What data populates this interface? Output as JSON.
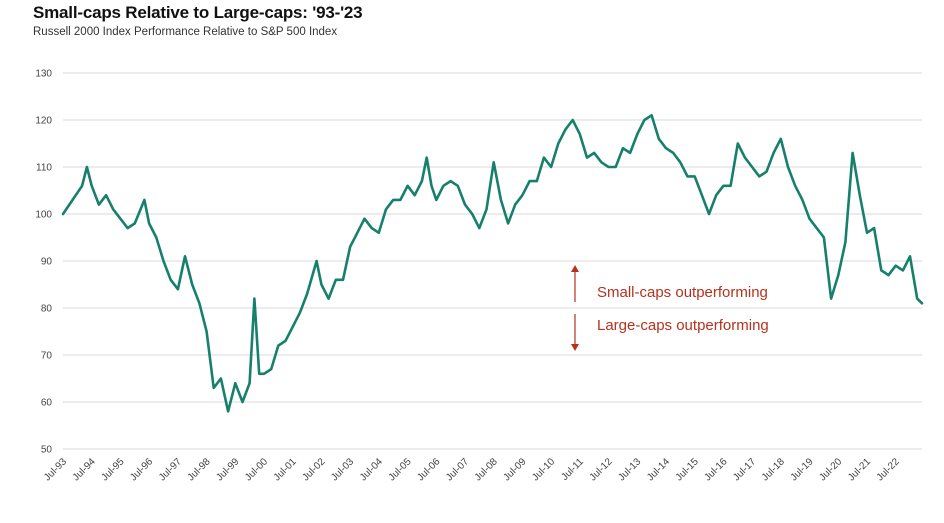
{
  "chart_data": {
    "type": "line",
    "title": "Small-caps Relative to Large-caps: '93-'23",
    "subtitle": "Russell 2000 Index Performance Relative to S&P 500 Index",
    "xlabel": "",
    "ylabel": "",
    "ylim": [
      50,
      130
    ],
    "yticks": [
      50,
      60,
      70,
      80,
      90,
      100,
      110,
      120,
      130
    ],
    "xticks": [
      "Jul-93",
      "Jul-94",
      "Jul-95",
      "Jul-96",
      "Jul-97",
      "Jul-98",
      "Jul-99",
      "Jul-00",
      "Jul-01",
      "Jul-02",
      "Jul-03",
      "Jul-04",
      "Jul-05",
      "Jul-06",
      "Jul-07",
      "Jul-08",
      "Jul-09",
      "Jul-10",
      "Jul-11",
      "Jul-12",
      "Jul-13",
      "Jul-14",
      "Jul-15",
      "Jul-16",
      "Jul-17",
      "Jul-18",
      "Jul-19",
      "Jul-20",
      "Jul-21",
      "Jul-22"
    ],
    "grid": true,
    "line_color": "#17806d",
    "annotation_color": "#b5321e",
    "annotations": {
      "up": "Small-caps outperforming",
      "down": "Large-caps outperforming"
    },
    "series": [
      {
        "values": [
          {
            "x": "Jul-93",
            "y": 100
          },
          {
            "x": "Nov-93",
            "y": 103
          },
          {
            "x": "Mar-94",
            "y": 106
          },
          {
            "x": "May-94",
            "y": 110
          },
          {
            "x": "Jul-94",
            "y": 106
          },
          {
            "x": "Oct-94",
            "y": 102
          },
          {
            "x": "Jan-95",
            "y": 104
          },
          {
            "x": "Apr-95",
            "y": 101
          },
          {
            "x": "Jul-95",
            "y": 99
          },
          {
            "x": "Oct-95",
            "y": 97
          },
          {
            "x": "Jan-96",
            "y": 98
          },
          {
            "x": "May-96",
            "y": 103
          },
          {
            "x": "Jul-96",
            "y": 98
          },
          {
            "x": "Oct-96",
            "y": 95
          },
          {
            "x": "Jan-97",
            "y": 90
          },
          {
            "x": "Apr-97",
            "y": 86
          },
          {
            "x": "Jul-97",
            "y": 84
          },
          {
            "x": "Oct-97",
            "y": 91
          },
          {
            "x": "Jan-98",
            "y": 85
          },
          {
            "x": "Apr-98",
            "y": 81
          },
          {
            "x": "Jul-98",
            "y": 75
          },
          {
            "x": "Oct-98",
            "y": 63
          },
          {
            "x": "Jan-99",
            "y": 65
          },
          {
            "x": "Apr-99",
            "y": 58
          },
          {
            "x": "Jul-99",
            "y": 64
          },
          {
            "x": "Oct-99",
            "y": 60
          },
          {
            "x": "Jan-00",
            "y": 64
          },
          {
            "x": "Mar-00",
            "y": 82
          },
          {
            "x": "May-00",
            "y": 66
          },
          {
            "x": "Jul-00",
            "y": 66
          },
          {
            "x": "Oct-00",
            "y": 67
          },
          {
            "x": "Jan-01",
            "y": 72
          },
          {
            "x": "Apr-01",
            "y": 73
          },
          {
            "x": "Jul-01",
            "y": 76
          },
          {
            "x": "Oct-01",
            "y": 79
          },
          {
            "x": "Jan-02",
            "y": 83
          },
          {
            "x": "May-02",
            "y": 90
          },
          {
            "x": "Jul-02",
            "y": 85
          },
          {
            "x": "Oct-02",
            "y": 82
          },
          {
            "x": "Jan-03",
            "y": 86
          },
          {
            "x": "Apr-03",
            "y": 86
          },
          {
            "x": "Jul-03",
            "y": 93
          },
          {
            "x": "Oct-03",
            "y": 96
          },
          {
            "x": "Jan-04",
            "y": 99
          },
          {
            "x": "Apr-04",
            "y": 97
          },
          {
            "x": "Jul-04",
            "y": 96
          },
          {
            "x": "Oct-04",
            "y": 101
          },
          {
            "x": "Jan-05",
            "y": 103
          },
          {
            "x": "Apr-05",
            "y": 103
          },
          {
            "x": "Jul-05",
            "y": 106
          },
          {
            "x": "Oct-05",
            "y": 104
          },
          {
            "x": "Jan-06",
            "y": 107
          },
          {
            "x": "Mar-06",
            "y": 112
          },
          {
            "x": "May-06",
            "y": 106
          },
          {
            "x": "Jul-06",
            "y": 103
          },
          {
            "x": "Oct-06",
            "y": 106
          },
          {
            "x": "Jan-07",
            "y": 107
          },
          {
            "x": "Apr-07",
            "y": 106
          },
          {
            "x": "Jul-07",
            "y": 102
          },
          {
            "x": "Oct-07",
            "y": 100
          },
          {
            "x": "Jan-08",
            "y": 97
          },
          {
            "x": "Apr-08",
            "y": 101
          },
          {
            "x": "Jul-08",
            "y": 111
          },
          {
            "x": "Oct-08",
            "y": 103
          },
          {
            "x": "Jan-09",
            "y": 98
          },
          {
            "x": "Apr-09",
            "y": 102
          },
          {
            "x": "Jul-09",
            "y": 104
          },
          {
            "x": "Oct-09",
            "y": 107
          },
          {
            "x": "Jan-10",
            "y": 107
          },
          {
            "x": "Apr-10",
            "y": 112
          },
          {
            "x": "Jul-10",
            "y": 110
          },
          {
            "x": "Oct-10",
            "y": 115
          },
          {
            "x": "Jan-11",
            "y": 118
          },
          {
            "x": "Apr-11",
            "y": 120
          },
          {
            "x": "Jul-11",
            "y": 117
          },
          {
            "x": "Oct-11",
            "y": 112
          },
          {
            "x": "Jan-12",
            "y": 113
          },
          {
            "x": "Apr-12",
            "y": 111
          },
          {
            "x": "Jul-12",
            "y": 110
          },
          {
            "x": "Oct-12",
            "y": 110
          },
          {
            "x": "Jan-13",
            "y": 114
          },
          {
            "x": "Apr-13",
            "y": 113
          },
          {
            "x": "Jul-13",
            "y": 117
          },
          {
            "x": "Oct-13",
            "y": 120
          },
          {
            "x": "Jan-14",
            "y": 121
          },
          {
            "x": "Apr-14",
            "y": 116
          },
          {
            "x": "Jul-14",
            "y": 114
          },
          {
            "x": "Oct-14",
            "y": 113
          },
          {
            "x": "Jan-15",
            "y": 111
          },
          {
            "x": "Apr-15",
            "y": 108
          },
          {
            "x": "Jul-15",
            "y": 108
          },
          {
            "x": "Oct-15",
            "y": 104
          },
          {
            "x": "Jan-16",
            "y": 100
          },
          {
            "x": "Apr-16",
            "y": 104
          },
          {
            "x": "Jul-16",
            "y": 106
          },
          {
            "x": "Oct-16",
            "y": 106
          },
          {
            "x": "Jan-17",
            "y": 115
          },
          {
            "x": "Apr-17",
            "y": 112
          },
          {
            "x": "Jul-17",
            "y": 110
          },
          {
            "x": "Oct-17",
            "y": 108
          },
          {
            "x": "Jan-18",
            "y": 109
          },
          {
            "x": "Apr-18",
            "y": 113
          },
          {
            "x": "Jul-18",
            "y": 116
          },
          {
            "x": "Oct-18",
            "y": 110
          },
          {
            "x": "Jan-19",
            "y": 106
          },
          {
            "x": "Apr-19",
            "y": 103
          },
          {
            "x": "Jul-19",
            "y": 99
          },
          {
            "x": "Oct-19",
            "y": 97
          },
          {
            "x": "Jan-20",
            "y": 95
          },
          {
            "x": "Apr-20",
            "y": 82
          },
          {
            "x": "Jul-20",
            "y": 87
          },
          {
            "x": "Oct-20",
            "y": 94
          },
          {
            "x": "Jan-21",
            "y": 113
          },
          {
            "x": "Apr-21",
            "y": 104
          },
          {
            "x": "Jul-21",
            "y": 96
          },
          {
            "x": "Oct-21",
            "y": 97
          },
          {
            "x": "Jan-22",
            "y": 88
          },
          {
            "x": "Apr-22",
            "y": 87
          },
          {
            "x": "Jul-22",
            "y": 89
          },
          {
            "x": "Oct-22",
            "y": 88
          },
          {
            "x": "Jan-23",
            "y": 91
          },
          {
            "x": "Apr-23",
            "y": 82
          },
          {
            "x": "Jun-23",
            "y": 81
          }
        ]
      }
    ]
  }
}
